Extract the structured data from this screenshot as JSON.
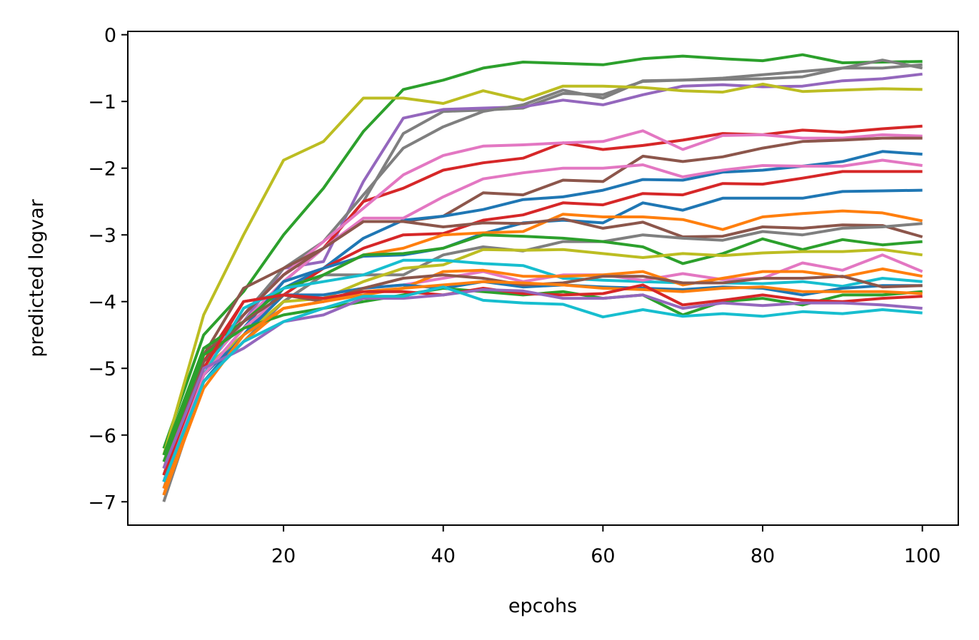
{
  "chart_data": {
    "type": "line",
    "title": "",
    "xlabel": "epcohs",
    "ylabel": "predicted logvar",
    "xlim": [
      0.5,
      104.5
    ],
    "ylim": [
      -7.35,
      0.05
    ],
    "xticks": [
      20,
      40,
      60,
      80,
      100
    ],
    "yticks": [
      0,
      -1,
      -2,
      -3,
      -4,
      -5,
      -6,
      -7
    ],
    "ytick_labels": [
      "0",
      "−1",
      "−2",
      "−3",
      "−4",
      "−5",
      "−6",
      "−7"
    ],
    "grid": false,
    "legend": "none",
    "x": [
      5,
      10,
      15,
      20,
      25,
      30,
      35,
      40,
      45,
      50,
      55,
      60,
      65,
      70,
      75,
      80,
      85,
      90,
      95,
      100
    ],
    "series": [
      {
        "color": "#2ca02c",
        "values": [
          -6.2,
          -4.5,
          -3.85,
          -3.0,
          -2.3,
          -1.45,
          -0.82,
          -0.68,
          -0.5,
          -0.41,
          -0.43,
          -0.45,
          -0.36,
          -0.32,
          -0.36,
          -0.39,
          -0.3,
          -0.42,
          -0.41,
          -0.4
        ]
      },
      {
        "color": "#7f7f7f",
        "values": [
          -6.9,
          -5.0,
          -4.3,
          -3.7,
          -3.2,
          -2.5,
          -1.48,
          -1.15,
          -1.13,
          -1.1,
          -0.88,
          -0.9,
          -0.7,
          -0.68,
          -0.65,
          -0.6,
          -0.55,
          -0.5,
          -0.38,
          -0.5
        ]
      },
      {
        "color": "#9467bd",
        "values": [
          -6.8,
          -5.0,
          -4.3,
          -3.5,
          -3.4,
          -2.2,
          -1.25,
          -1.12,
          -1.1,
          -1.08,
          -0.98,
          -1.05,
          -0.9,
          -0.77,
          -0.75,
          -0.78,
          -0.77,
          -0.69,
          -0.66,
          -0.59
        ]
      },
      {
        "color": "#7f7f7f",
        "values": [
          -6.7,
          -4.8,
          -4.2,
          -3.5,
          -3.1,
          -2.4,
          -1.7,
          -1.38,
          -1.15,
          -1.05,
          -0.83,
          -0.95,
          -0.69,
          -0.68,
          -0.67,
          -0.66,
          -0.63,
          -0.5,
          -0.5,
          -0.45
        ]
      },
      {
        "color": "#bcbd22",
        "values": [
          -6.3,
          -4.2,
          -3.0,
          -1.88,
          -1.6,
          -0.95,
          -0.95,
          -1.03,
          -0.84,
          -0.98,
          -0.77,
          -0.77,
          -0.79,
          -0.84,
          -0.86,
          -0.74,
          -0.85,
          -0.83,
          -0.81,
          -0.82
        ]
      },
      {
        "color": "#d62728",
        "values": [
          -6.6,
          -5.0,
          -4.2,
          -3.6,
          -3.2,
          -2.5,
          -2.3,
          -2.03,
          -1.92,
          -1.85,
          -1.62,
          -1.72,
          -1.66,
          -1.58,
          -1.48,
          -1.5,
          -1.43,
          -1.46,
          -1.41,
          -1.37
        ]
      },
      {
        "color": "#e377c2",
        "values": [
          -6.7,
          -4.9,
          -4.2,
          -3.6,
          -3.1,
          -2.6,
          -2.1,
          -1.81,
          -1.67,
          -1.65,
          -1.62,
          -1.6,
          -1.44,
          -1.72,
          -1.51,
          -1.5,
          -1.55,
          -1.55,
          -1.5,
          -1.52
        ]
      },
      {
        "color": "#8c564b",
        "values": [
          -6.5,
          -4.8,
          -3.8,
          -3.5,
          -3.2,
          -2.8,
          -2.8,
          -2.72,
          -2.37,
          -2.4,
          -2.18,
          -2.2,
          -1.82,
          -1.9,
          -1.83,
          -1.7,
          -1.6,
          -1.58,
          -1.55,
          -1.55
        ]
      },
      {
        "color": "#1f77b4",
        "values": [
          -6.7,
          -5.1,
          -4.5,
          -3.8,
          -3.5,
          -3.05,
          -2.78,
          -2.72,
          -2.62,
          -2.47,
          -2.43,
          -2.33,
          -2.17,
          -2.18,
          -2.06,
          -2.03,
          -1.97,
          -1.9,
          -1.75,
          -1.79
        ]
      },
      {
        "color": "#e377c2",
        "values": [
          -6.6,
          -5.0,
          -4.3,
          -3.7,
          -3.2,
          -2.75,
          -2.75,
          -2.43,
          -2.16,
          -2.07,
          -2.0,
          -2.0,
          -1.95,
          -2.13,
          -2.03,
          -1.96,
          -1.97,
          -1.97,
          -1.88,
          -1.96
        ]
      },
      {
        "color": "#d62728",
        "values": [
          -6.5,
          -4.9,
          -4.0,
          -3.9,
          -3.5,
          -3.2,
          -3.0,
          -2.98,
          -2.78,
          -2.7,
          -2.52,
          -2.55,
          -2.38,
          -2.4,
          -2.23,
          -2.24,
          -2.15,
          -2.05,
          -2.05,
          -2.05
        ]
      },
      {
        "color": "#1f77b4",
        "values": [
          -6.8,
          -5.1,
          -4.4,
          -3.7,
          -3.5,
          -3.32,
          -3.3,
          -3.2,
          -2.98,
          -2.82,
          -2.78,
          -2.82,
          -2.52,
          -2.63,
          -2.45,
          -2.45,
          -2.45,
          -2.35,
          -2.34,
          -2.33
        ]
      },
      {
        "color": "#ff7f0e",
        "values": [
          -6.9,
          -5.2,
          -4.5,
          -4.0,
          -3.6,
          -3.3,
          -3.2,
          -3.0,
          -2.97,
          -2.95,
          -2.69,
          -2.73,
          -2.73,
          -2.77,
          -2.92,
          -2.73,
          -2.68,
          -2.64,
          -2.67,
          -2.79
        ]
      },
      {
        "color": "#8c564b",
        "values": [
          -6.6,
          -4.8,
          -4.2,
          -3.6,
          -3.2,
          -2.8,
          -2.8,
          -2.88,
          -2.82,
          -2.83,
          -2.76,
          -2.9,
          -2.81,
          -3.03,
          -3.02,
          -2.88,
          -2.9,
          -2.85,
          -2.86,
          -3.03
        ]
      },
      {
        "color": "#7f7f7f",
        "values": [
          -7.0,
          -5.2,
          -4.6,
          -4.0,
          -3.6,
          -3.6,
          -3.6,
          -3.3,
          -3.18,
          -3.24,
          -3.1,
          -3.1,
          -3.0,
          -3.05,
          -3.08,
          -2.95,
          -3.0,
          -2.9,
          -2.88,
          -2.83
        ]
      },
      {
        "color": "#2ca02c",
        "values": [
          -6.3,
          -4.7,
          -4.3,
          -3.8,
          -3.6,
          -3.3,
          -3.28,
          -3.2,
          -3.0,
          -3.02,
          -3.05,
          -3.1,
          -3.18,
          -3.43,
          -3.28,
          -3.06,
          -3.22,
          -3.07,
          -3.15,
          -3.1
        ]
      },
      {
        "color": "#bcbd22",
        "values": [
          -6.5,
          -5.0,
          -4.5,
          -4.0,
          -3.95,
          -3.7,
          -3.5,
          -3.45,
          -3.22,
          -3.23,
          -3.22,
          -3.28,
          -3.34,
          -3.28,
          -3.31,
          -3.27,
          -3.25,
          -3.25,
          -3.22,
          -3.3
        ]
      },
      {
        "color": "#17becf",
        "values": [
          -6.6,
          -5.1,
          -4.1,
          -3.8,
          -3.7,
          -3.6,
          -3.38,
          -3.38,
          -3.43,
          -3.46,
          -3.65,
          -3.68,
          -3.7,
          -3.72,
          -3.72,
          -3.73,
          -3.7,
          -3.77,
          -3.65,
          -3.7
        ]
      },
      {
        "color": "#e377c2",
        "values": [
          -6.7,
          -5.1,
          -4.4,
          -3.9,
          -3.9,
          -3.8,
          -3.75,
          -3.65,
          -3.55,
          -3.7,
          -3.6,
          -3.6,
          -3.68,
          -3.58,
          -3.67,
          -3.65,
          -3.42,
          -3.53,
          -3.3,
          -3.55
        ]
      },
      {
        "color": "#ff7f0e",
        "values": [
          -6.8,
          -5.2,
          -4.6,
          -4.1,
          -4.0,
          -3.9,
          -3.8,
          -3.55,
          -3.53,
          -3.62,
          -3.62,
          -3.6,
          -3.55,
          -3.75,
          -3.65,
          -3.55,
          -3.55,
          -3.63,
          -3.51,
          -3.62
        ]
      },
      {
        "color": "#1f77b4",
        "values": [
          -6.7,
          -5.2,
          -4.5,
          -3.9,
          -3.9,
          -3.8,
          -3.75,
          -3.8,
          -3.7,
          -3.78,
          -3.75,
          -3.78,
          -3.8,
          -3.82,
          -3.78,
          -3.8,
          -3.9,
          -3.8,
          -3.76,
          -3.76
        ]
      },
      {
        "color": "#8c564b",
        "values": [
          -6.6,
          -4.9,
          -4.3,
          -3.9,
          -4.0,
          -3.8,
          -3.65,
          -3.6,
          -3.65,
          -3.75,
          -3.72,
          -3.62,
          -3.62,
          -3.72,
          -3.72,
          -3.65,
          -3.65,
          -3.62,
          -3.78,
          -3.76
        ]
      },
      {
        "color": "#2ca02c",
        "values": [
          -6.4,
          -4.8,
          -4.4,
          -4.2,
          -4.1,
          -4.0,
          -3.9,
          -3.8,
          -3.85,
          -3.9,
          -3.85,
          -3.95,
          -3.9,
          -4.2,
          -4.0,
          -3.95,
          -4.05,
          -3.9,
          -3.9,
          -3.85
        ]
      },
      {
        "color": "#ff7f0e",
        "values": [
          -6.9,
          -5.3,
          -4.5,
          -4.1,
          -4.0,
          -3.85,
          -3.8,
          -3.75,
          -3.7,
          -3.72,
          -3.75,
          -3.8,
          -3.82,
          -3.85,
          -3.8,
          -3.78,
          -3.85,
          -3.85,
          -3.85,
          -3.88
        ]
      },
      {
        "color": "#d62728",
        "values": [
          -6.6,
          -5.0,
          -4.0,
          -3.9,
          -3.95,
          -3.85,
          -3.85,
          -3.9,
          -3.8,
          -3.88,
          -3.9,
          -3.88,
          -3.75,
          -4.05,
          -3.98,
          -3.9,
          -3.98,
          -4.0,
          -3.95,
          -3.92
        ]
      },
      {
        "color": "#9467bd",
        "values": [
          -6.5,
          -5.0,
          -4.7,
          -4.3,
          -4.2,
          -3.95,
          -3.95,
          -3.9,
          -3.82,
          -3.84,
          -3.95,
          -3.95,
          -3.9,
          -4.1,
          -4.02,
          -4.06,
          -4.02,
          -4.02,
          -4.05,
          -4.1
        ]
      },
      {
        "color": "#17becf",
        "values": [
          -6.7,
          -5.2,
          -4.6,
          -4.3,
          -4.1,
          -3.92,
          -3.92,
          -3.78,
          -3.98,
          -4.02,
          -4.04,
          -4.23,
          -4.12,
          -4.22,
          -4.18,
          -4.22,
          -4.15,
          -4.18,
          -4.12,
          -4.17
        ]
      }
    ]
  }
}
